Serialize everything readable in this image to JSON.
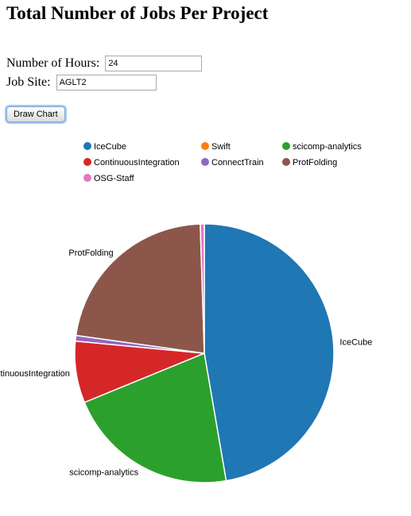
{
  "page": {
    "title": "Total Number of Jobs Per Project"
  },
  "form": {
    "hours_label": "Number of Hours:",
    "hours_value": "24",
    "site_label": "Job Site:",
    "site_value": "AGLT2",
    "draw_button_label": "Draw Chart"
  },
  "chart_data": {
    "type": "pie",
    "title": "",
    "legend_position": "top",
    "slices": [
      {
        "label": "IceCube",
        "value": 47.3,
        "color": "#1f77b4",
        "show_label": true
      },
      {
        "label": "Swift",
        "value": 0.0,
        "color": "#ff7f0e",
        "show_label": false
      },
      {
        "label": "scicomp-analytics",
        "value": 21.5,
        "color": "#2ca02c",
        "show_label": true
      },
      {
        "label": "ContinuousIntegration",
        "value": 7.7,
        "color": "#d62728",
        "show_label": true
      },
      {
        "label": "ConnectTrain",
        "value": 0.7,
        "color": "#9467bd",
        "show_label": false
      },
      {
        "label": "ProtFolding",
        "value": 22.3,
        "color": "#8c564b",
        "show_label": true
      },
      {
        "label": "OSG-Staff",
        "value": 0.5,
        "color": "#e377c2",
        "show_label": false
      }
    ]
  }
}
